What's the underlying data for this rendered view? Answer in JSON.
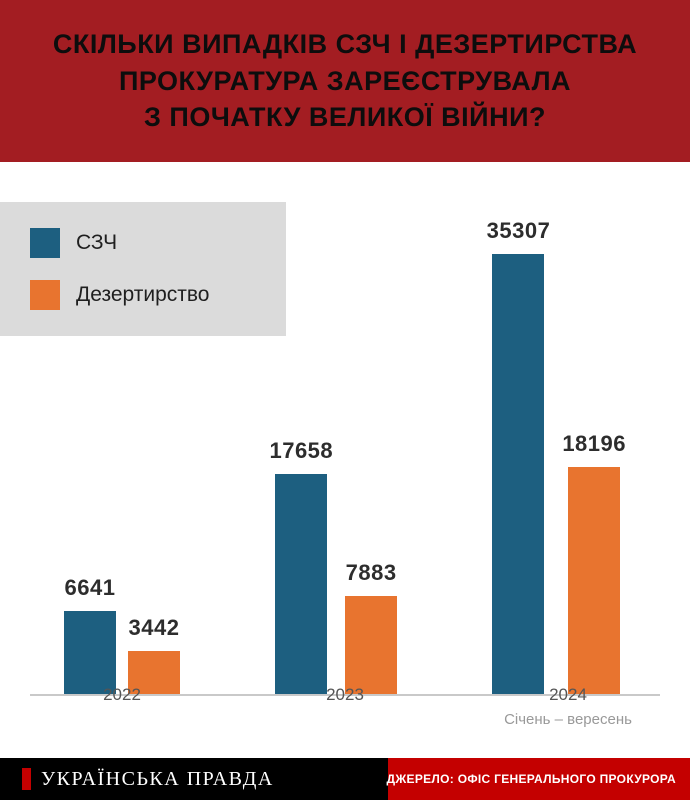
{
  "title": {
    "lines": [
      "СКІЛЬКИ ВИПАДКІВ СЗЧ І ДЕЗЕРТИРСТВА",
      "ПРОКУРАТУРА ЗАРЕЄСТРУВАЛА",
      "З ПОЧАТКУ ВЕЛИКОЇ ВІЙНИ?"
    ]
  },
  "legend": [
    {
      "label": "СЗЧ",
      "color": "#1D5F80"
    },
    {
      "label": "Дезертирство",
      "color": "#E8742F"
    }
  ],
  "chart_data": {
    "type": "bar",
    "categories": [
      "2022",
      "2023",
      "2024"
    ],
    "series": [
      {
        "name": "СЗЧ",
        "color": "#1D5F80",
        "values": [
          6641,
          17658,
          35307
        ]
      },
      {
        "name": "Дезертирство",
        "color": "#E8742F",
        "values": [
          3442,
          7883,
          18196
        ]
      }
    ],
    "x_sub_label": {
      "category": "2024",
      "text": "Січень – вересень"
    },
    "ylim": [
      0,
      35307
    ],
    "grid": false,
    "legend_position": "top-left",
    "title": "Скільки випадків СЗЧ і дезертирства прокуратура зареєструвала з початку великої війни?"
  },
  "footer": {
    "brand": "УКРАЇНСЬКА ПРАВДА",
    "source": "ДЖЕРЕЛО: ОФІС ГЕНЕРАЛЬНОГО ПРОКУРОРА"
  },
  "colors": {
    "header_bg": "#A31D22",
    "szch": "#1D5F80",
    "desertion": "#E8742F",
    "legend_bg": "#DBDBDB",
    "footer_bg": "#000000",
    "source_bg": "#C40000",
    "baseline": "#C9C9C9",
    "value_text": "#2D2D2D",
    "axis_text": "#555555",
    "subaxis_text": "#999999"
  }
}
